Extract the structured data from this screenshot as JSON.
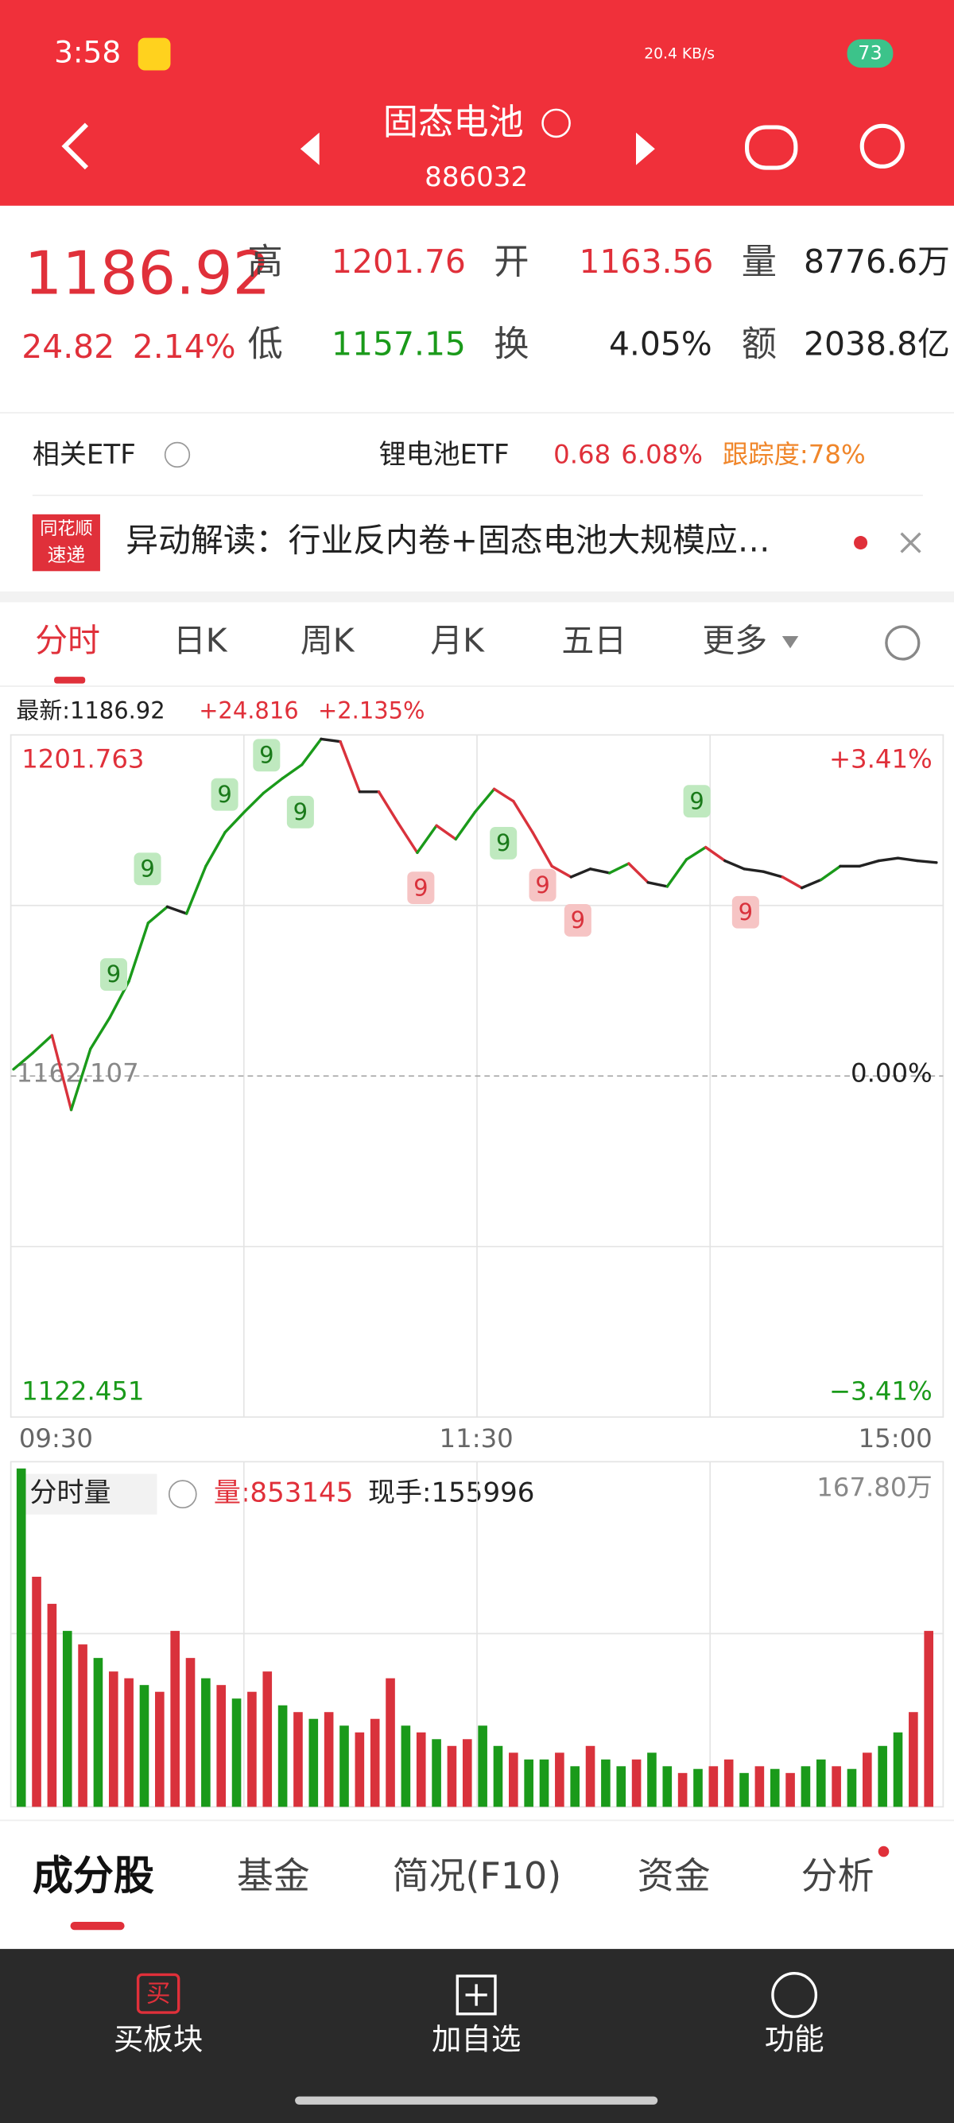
{
  "status": {
    "time": "3:58",
    "speed": "20.4 KB/s",
    "battery": "73"
  },
  "header": {
    "title": "固态电池",
    "code": "886032"
  },
  "quote": {
    "price": "1186.92",
    "change": "24.82",
    "change_pct": "2.14%",
    "high_label": "高",
    "high": "1201.76",
    "open_label": "开",
    "open": "1163.56",
    "volume_label": "量",
    "volume": "8776.6万",
    "low_label": "低",
    "low": "1157.15",
    "turnover_label": "换",
    "turnover": "4.05%",
    "amount_label": "额",
    "amount": "2038.8亿"
  },
  "etf": {
    "label": "相关ETF",
    "name": "锂电池ETF",
    "change": "0.68",
    "change_pct": "6.08%",
    "tracking": "跟踪度:78%"
  },
  "news": {
    "badge_top": "同花顺",
    "badge_bottom": "速递",
    "text": "异动解读：行业反内卷+固态电池大规模应…"
  },
  "tabs": [
    "分时",
    "日K",
    "周K",
    "月K",
    "五日",
    "更多"
  ],
  "intraday": {
    "latest": "最新:1186.92",
    "change": "+24.816",
    "change_pct": "+2.135%",
    "ylim": [
      1122.451,
      1201.763
    ],
    "yticks": [
      {
        "value": 1201.763,
        "label": "1201.763"
      },
      {
        "value": 1162.107,
        "label": "1162.107"
      },
      {
        "value": 1122.451,
        "label": "1122.451"
      }
    ],
    "pct_ticks": [
      "+3.41%",
      "0.00%",
      "−3.41%"
    ],
    "xticks": [
      "09:30",
      "11:30",
      "15:00"
    ],
    "colors": {
      "up": "#1a9a1a",
      "down": "#d9323c",
      "flat": "#222222"
    },
    "values": [
      1162.89,
      1164.78,
      1166.83,
      1158.17,
      1165.25,
      1168.87,
      1173.12,
      1179.89,
      1181.78,
      1180.99,
      1186.5,
      1190.43,
      1192.79,
      1195.0,
      1196.73,
      1198.3,
      1201.29,
      1200.98,
      1195.15,
      1195.15,
      1191.53,
      1188.07,
      1191.22,
      1189.64,
      1192.79,
      1195.47,
      1194.05,
      1190.43,
      1186.5,
      1185.24,
      1186.18,
      1185.71,
      1186.81,
      1184.61,
      1184.14,
      1187.28,
      1188.7,
      1187.13,
      1186.18,
      1185.87,
      1185.24,
      1183.98,
      1184.92,
      1186.5,
      1186.5,
      1187.13,
      1187.44,
      1187.13,
      1186.92
    ],
    "signals": [
      {
        "label": "9",
        "kind": "buy"
      },
      {
        "label": "9",
        "kind": "buy"
      },
      {
        "label": "9",
        "kind": "buy"
      },
      {
        "label": "9",
        "kind": "buy"
      },
      {
        "label": "9",
        "kind": "buy"
      },
      {
        "label": "9",
        "kind": "sell"
      },
      {
        "label": "9",
        "kind": "buy"
      },
      {
        "label": "9",
        "kind": "sell"
      },
      {
        "label": "9",
        "kind": "sell"
      },
      {
        "label": "9",
        "kind": "buy"
      },
      {
        "label": "9",
        "kind": "sell"
      }
    ]
  },
  "volume": {
    "title": "分时量",
    "volume": "量:853145",
    "hand": "现手:155996",
    "ylim": [
      0,
      1678000
    ],
    "yticks": [
      {
        "value": 1678000,
        "label": "167.80万"
      }
    ],
    "values": [
      1678000,
      1141040,
      1006800,
      872560,
      805440,
      738320,
      671200,
      637640,
      604080,
      570520,
      872560,
      738320,
      637640,
      604080,
      536960,
      570520,
      671200,
      503400,
      469840,
      436280,
      469840,
      402720,
      369160,
      436280,
      637640,
      402720,
      369160,
      335600,
      302040,
      335600,
      402720,
      302040,
      268480,
      234920,
      234920,
      268480,
      201360,
      302040,
      234920,
      201360,
      234920,
      268480,
      201360,
      167800,
      187936,
      201360,
      234920,
      167800,
      201360,
      187936,
      167800,
      201360,
      234920,
      201360,
      187936,
      268480,
      302040,
      369160,
      469840,
      872560
    ],
    "colors": [
      "#1a9a1a",
      "#d9323c",
      "#d9323c",
      "#1a9a1a",
      "#d9323c",
      "#1a9a1a",
      "#d9323c",
      "#d9323c",
      "#1a9a1a",
      "#d9323c",
      "#d9323c",
      "#d9323c",
      "#1a9a1a",
      "#d9323c",
      "#1a9a1a",
      "#d9323c",
      "#d9323c",
      "#1a9a1a",
      "#d9323c",
      "#1a9a1a",
      "#d9323c",
      "#1a9a1a",
      "#d9323c",
      "#d9323c",
      "#d9323c",
      "#1a9a1a",
      "#d9323c",
      "#1a9a1a",
      "#d9323c",
      "#d9323c",
      "#1a9a1a",
      "#1a9a1a",
      "#d9323c",
      "#1a9a1a",
      "#1a9a1a",
      "#d9323c",
      "#1a9a1a",
      "#d9323c",
      "#1a9a1a",
      "#1a9a1a",
      "#d9323c",
      "#1a9a1a",
      "#1a9a1a",
      "#d9323c",
      "#1a9a1a",
      "#d9323c",
      "#d9323c",
      "#1a9a1a",
      "#d9323c",
      "#1a9a1a",
      "#d9323c",
      "#1a9a1a",
      "#1a9a1a",
      "#d9323c",
      "#1a9a1a",
      "#d9323c",
      "#1a9a1a",
      "#1a9a1a",
      "#d9323c",
      "#d9323c"
    ]
  },
  "bottom_tabs": [
    "成分股",
    "基金",
    "简况(F10)",
    "资金",
    "分析"
  ],
  "nav": {
    "buy_icon": "买",
    "buy": "买板块",
    "add": "加自选",
    "func": "功能"
  }
}
